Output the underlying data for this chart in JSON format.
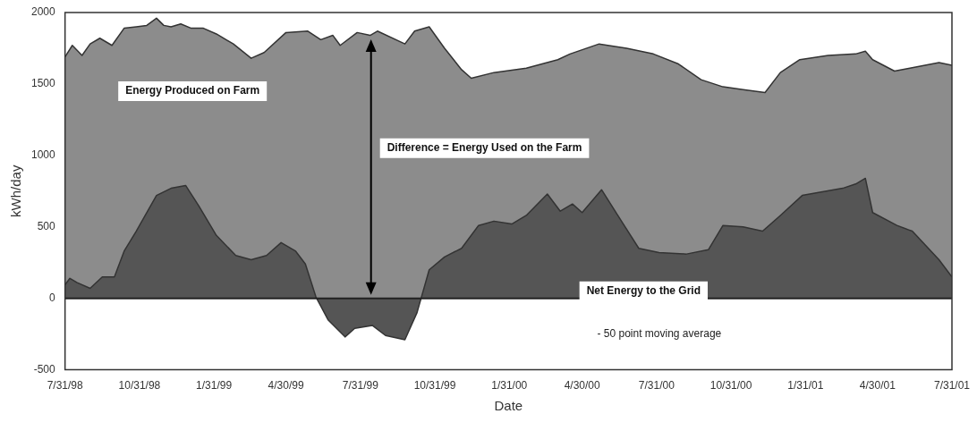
{
  "chart_data": {
    "type": "area",
    "xlabel": "Date",
    "ylabel": "kWh/day",
    "xlim": [
      "1998-07-31",
      "2001-07-31"
    ],
    "xticks": [
      {
        "value": "1998-07-31",
        "label": "7/31/98"
      },
      {
        "value": "1998-10-31",
        "label": "10/31/98"
      },
      {
        "value": "1999-01-31",
        "label": "1/31/99"
      },
      {
        "value": "1999-04-30",
        "label": "4/30/99"
      },
      {
        "value": "1999-07-31",
        "label": "7/31/99"
      },
      {
        "value": "1999-10-31",
        "label": "10/31/99"
      },
      {
        "value": "2000-01-31",
        "label": "1/31/00"
      },
      {
        "value": "2000-04-30",
        "label": "4/30/00"
      },
      {
        "value": "2000-07-31",
        "label": "7/31/00"
      },
      {
        "value": "2000-10-31",
        "label": "10/31/00"
      },
      {
        "value": "2001-01-31",
        "label": "1/31/01"
      },
      {
        "value": "2001-04-30",
        "label": "4/30/01"
      },
      {
        "value": "2001-07-31",
        "label": "7/31/01"
      }
    ],
    "ylim": [
      -500,
      2000
    ],
    "yticks": [
      -500,
      0,
      500,
      1000,
      1500,
      2000
    ],
    "grid": false,
    "legend": false,
    "ref_lines": [
      {
        "axis": "y",
        "value": 0,
        "color": "#222222"
      }
    ],
    "series": [
      {
        "name": "Energy Produced on Farm",
        "color": "#8c8c8c",
        "x": [
          "1998-07-31",
          "1998-08-09",
          "1998-08-21",
          "1998-08-31",
          "1998-09-12",
          "1998-09-27",
          "1998-10-12",
          "1998-10-27",
          "1998-11-09",
          "1998-11-21",
          "1998-11-30",
          "1998-12-09",
          "1998-12-21",
          "1999-01-03",
          "1999-01-18",
          "1999-02-03",
          "1999-02-24",
          "1999-03-18",
          "1999-04-03",
          "1999-04-30",
          "1999-05-27",
          "1999-06-12",
          "1999-06-27",
          "1999-07-06",
          "1999-07-27",
          "1999-08-12",
          "1999-08-21",
          "1999-09-24",
          "1999-10-06",
          "1999-10-24",
          "1999-11-12",
          "1999-12-03",
          "1999-12-15",
          "2000-01-12",
          "2000-02-21",
          "2000-03-31",
          "2000-04-15",
          "2000-05-21",
          "2000-06-24",
          "2000-07-27",
          "2000-08-27",
          "2000-09-24",
          "2000-10-21",
          "2000-11-15",
          "2000-12-12",
          "2000-12-31",
          "2001-01-24",
          "2001-02-28",
          "2001-04-03",
          "2001-04-15",
          "2001-04-24",
          "2001-05-21",
          "2001-06-09",
          "2001-07-15",
          "2001-07-31"
        ],
        "values": [
          1690,
          1770,
          1700,
          1780,
          1820,
          1770,
          1890,
          1900,
          1910,
          1960,
          1910,
          1900,
          1920,
          1890,
          1890,
          1850,
          1780,
          1680,
          1720,
          1860,
          1870,
          1810,
          1840,
          1770,
          1860,
          1840,
          1870,
          1780,
          1870,
          1900,
          1750,
          1600,
          1540,
          1580,
          1610,
          1670,
          1710,
          1780,
          1750,
          1710,
          1640,
          1530,
          1480,
          1460,
          1440,
          1580,
          1670,
          1700,
          1710,
          1730,
          1670,
          1590,
          1610,
          1650,
          1630
        ]
      },
      {
        "name": "Net Energy to the Grid",
        "color": "#555555",
        "x": [
          "1998-07-31",
          "1998-08-06",
          "1998-08-15",
          "1998-08-31",
          "1998-09-15",
          "1998-09-30",
          "1998-10-12",
          "1998-10-27",
          "1998-11-21",
          "1998-12-09",
          "1998-12-27",
          "1999-01-12",
          "1999-02-03",
          "1999-02-27",
          "1999-03-18",
          "1999-04-06",
          "1999-04-24",
          "1999-05-12",
          "1999-05-24",
          "1999-06-06",
          "1999-06-21",
          "1999-07-12",
          "1999-07-24",
          "1999-08-15",
          "1999-08-31",
          "1999-09-24",
          "1999-10-09",
          "1999-10-24",
          "1999-11-12",
          "1999-12-03",
          "1999-12-24",
          "2000-01-12",
          "2000-02-03",
          "2000-02-21",
          "2000-03-18",
          "2000-04-03",
          "2000-04-18",
          "2000-04-30",
          "2000-05-24",
          "2000-06-12",
          "2000-07-09",
          "2000-08-03",
          "2000-09-06",
          "2000-10-03",
          "2000-10-21",
          "2000-11-15",
          "2000-12-09",
          "2000-12-31",
          "2001-01-27",
          "2001-03-18",
          "2001-04-03",
          "2001-04-15",
          "2001-04-24",
          "2001-05-24",
          "2001-06-12",
          "2001-07-15",
          "2001-07-31"
        ],
        "values": [
          95,
          140,
          110,
          70,
          150,
          150,
          330,
          470,
          720,
          770,
          790,
          650,
          440,
          300,
          270,
          300,
          390,
          330,
          240,
          10,
          -150,
          -270,
          -210,
          -190,
          -260,
          -290,
          -100,
          200,
          290,
          350,
          510,
          540,
          520,
          580,
          730,
          610,
          660,
          600,
          760,
          590,
          350,
          320,
          310,
          340,
          510,
          500,
          470,
          580,
          720,
          770,
          800,
          840,
          600,
          510,
          470,
          270,
          150
        ]
      }
    ],
    "annotations": [
      "Difference = Energy Used on the Farm",
      "- 50 point moving average"
    ]
  }
}
